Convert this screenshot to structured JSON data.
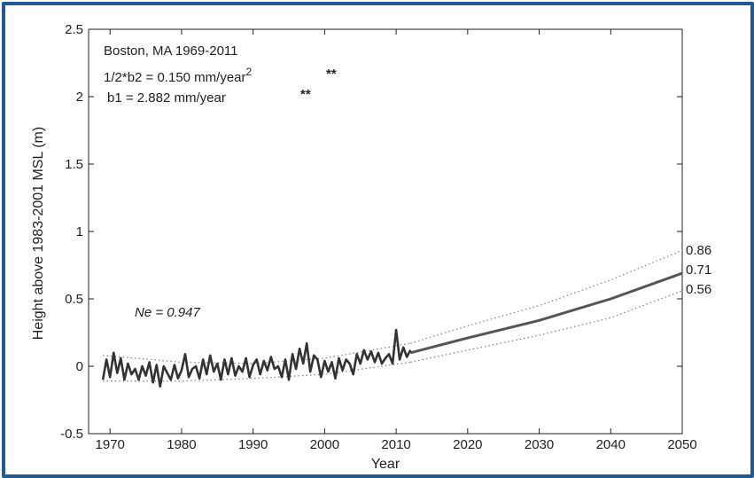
{
  "chart_data": {
    "type": "line",
    "title": "",
    "xlabel": "Year",
    "ylabel": "Height above 1983-2001 MSL (m)",
    "xlim": [
      1967,
      2050
    ],
    "ylim": [
      -0.5,
      2.5
    ],
    "x_ticks": [
      "1970",
      "1980",
      "1990",
      "2000",
      "2010",
      "2020",
      "2030",
      "2040",
      "2050"
    ],
    "y_ticks": [
      "-0.5",
      "0",
      "0.5",
      "1",
      "1.5",
      "2",
      "2.5"
    ],
    "grid": false,
    "annotations": {
      "station": "Boston, MA 1969-2011",
      "b2_label": "1/2*b2 =  0.150 mm/year",
      "b2_sup": "2",
      "b2_sig": "**",
      "b1_label": "b1 =  2.882 mm/year",
      "b1_sig": "**",
      "ne_label": "Ne = 0.947",
      "end_upper": "0.86",
      "end_mid": "0.71",
      "end_lower": "0.56"
    },
    "projection": {
      "x": [
        2012,
        2020,
        2030,
        2040,
        2050
      ],
      "central": [
        0.1,
        0.21,
        0.34,
        0.5,
        0.69
      ],
      "upper": [
        0.17,
        0.3,
        0.45,
        0.64,
        0.86
      ],
      "lower": [
        0.03,
        0.12,
        0.23,
        0.36,
        0.56
      ]
    },
    "confidence_band_historical": {
      "x": [
        1969,
        1980,
        1990,
        2000,
        2012
      ],
      "upper": [
        0.08,
        0.03,
        0.02,
        0.06,
        0.17
      ],
      "lower": [
        -0.11,
        -0.11,
        -0.09,
        -0.06,
        0.03
      ]
    },
    "observed_series": {
      "x": [
        1969.0,
        1969.5,
        1970.0,
        1970.5,
        1971.0,
        1971.5,
        1972.0,
        1972.5,
        1973.0,
        1973.5,
        1974.0,
        1974.5,
        1975.0,
        1975.5,
        1976.0,
        1976.5,
        1977.0,
        1977.5,
        1978.0,
        1978.5,
        1979.0,
        1979.5,
        1980.0,
        1980.5,
        1981.0,
        1981.5,
        1982.0,
        1982.5,
        1983.0,
        1983.5,
        1984.0,
        1984.5,
        1985.0,
        1985.5,
        1986.0,
        1986.5,
        1987.0,
        1987.5,
        1988.0,
        1988.5,
        1989.0,
        1989.5,
        1990.0,
        1990.5,
        1991.0,
        1991.5,
        1992.0,
        1992.5,
        1993.0,
        1993.5,
        1994.0,
        1994.5,
        1995.0,
        1995.5,
        1996.0,
        1996.5,
        1997.0,
        1997.5,
        1998.0,
        1998.5,
        1999.0,
        1999.5,
        2000.0,
        2000.5,
        2001.0,
        2001.5,
        2002.0,
        2002.5,
        2003.0,
        2003.5,
        2004.0,
        2004.5,
        2005.0,
        2005.5,
        2006.0,
        2006.5,
        2007.0,
        2007.5,
        2008.0,
        2008.5,
        2009.0,
        2009.5,
        2010.0,
        2010.5,
        2011.0,
        2011.5,
        2012.0
      ],
      "values": [
        -0.1,
        0.05,
        -0.08,
        0.1,
        -0.05,
        0.06,
        -0.1,
        0.02,
        -0.06,
        -0.02,
        -0.1,
        0.0,
        -0.07,
        0.03,
        -0.12,
        0.01,
        -0.15,
        0.0,
        -0.05,
        -0.1,
        0.01,
        -0.09,
        -0.03,
        0.09,
        -0.08,
        -0.02,
        0.0,
        -0.09,
        0.05,
        -0.06,
        0.08,
        -0.04,
        0.02,
        -0.1,
        0.05,
        -0.06,
        0.06,
        -0.07,
        0.0,
        -0.04,
        0.06,
        -0.08,
        0.01,
        0.05,
        -0.06,
        0.04,
        -0.03,
        0.07,
        -0.02,
        0.0,
        -0.08,
        0.05,
        -0.1,
        0.09,
        -0.02,
        0.13,
        0.02,
        0.17,
        -0.04,
        0.08,
        0.05,
        -0.08,
        0.04,
        -0.04,
        0.03,
        -0.09,
        0.06,
        -0.03,
        0.05,
        0.02,
        -0.06,
        0.09,
        0.02,
        0.12,
        0.05,
        0.11,
        0.03,
        0.1,
        0.02,
        0.06,
        0.09,
        0.02,
        0.27,
        0.05,
        0.14,
        0.07,
        0.12
      ]
    }
  }
}
